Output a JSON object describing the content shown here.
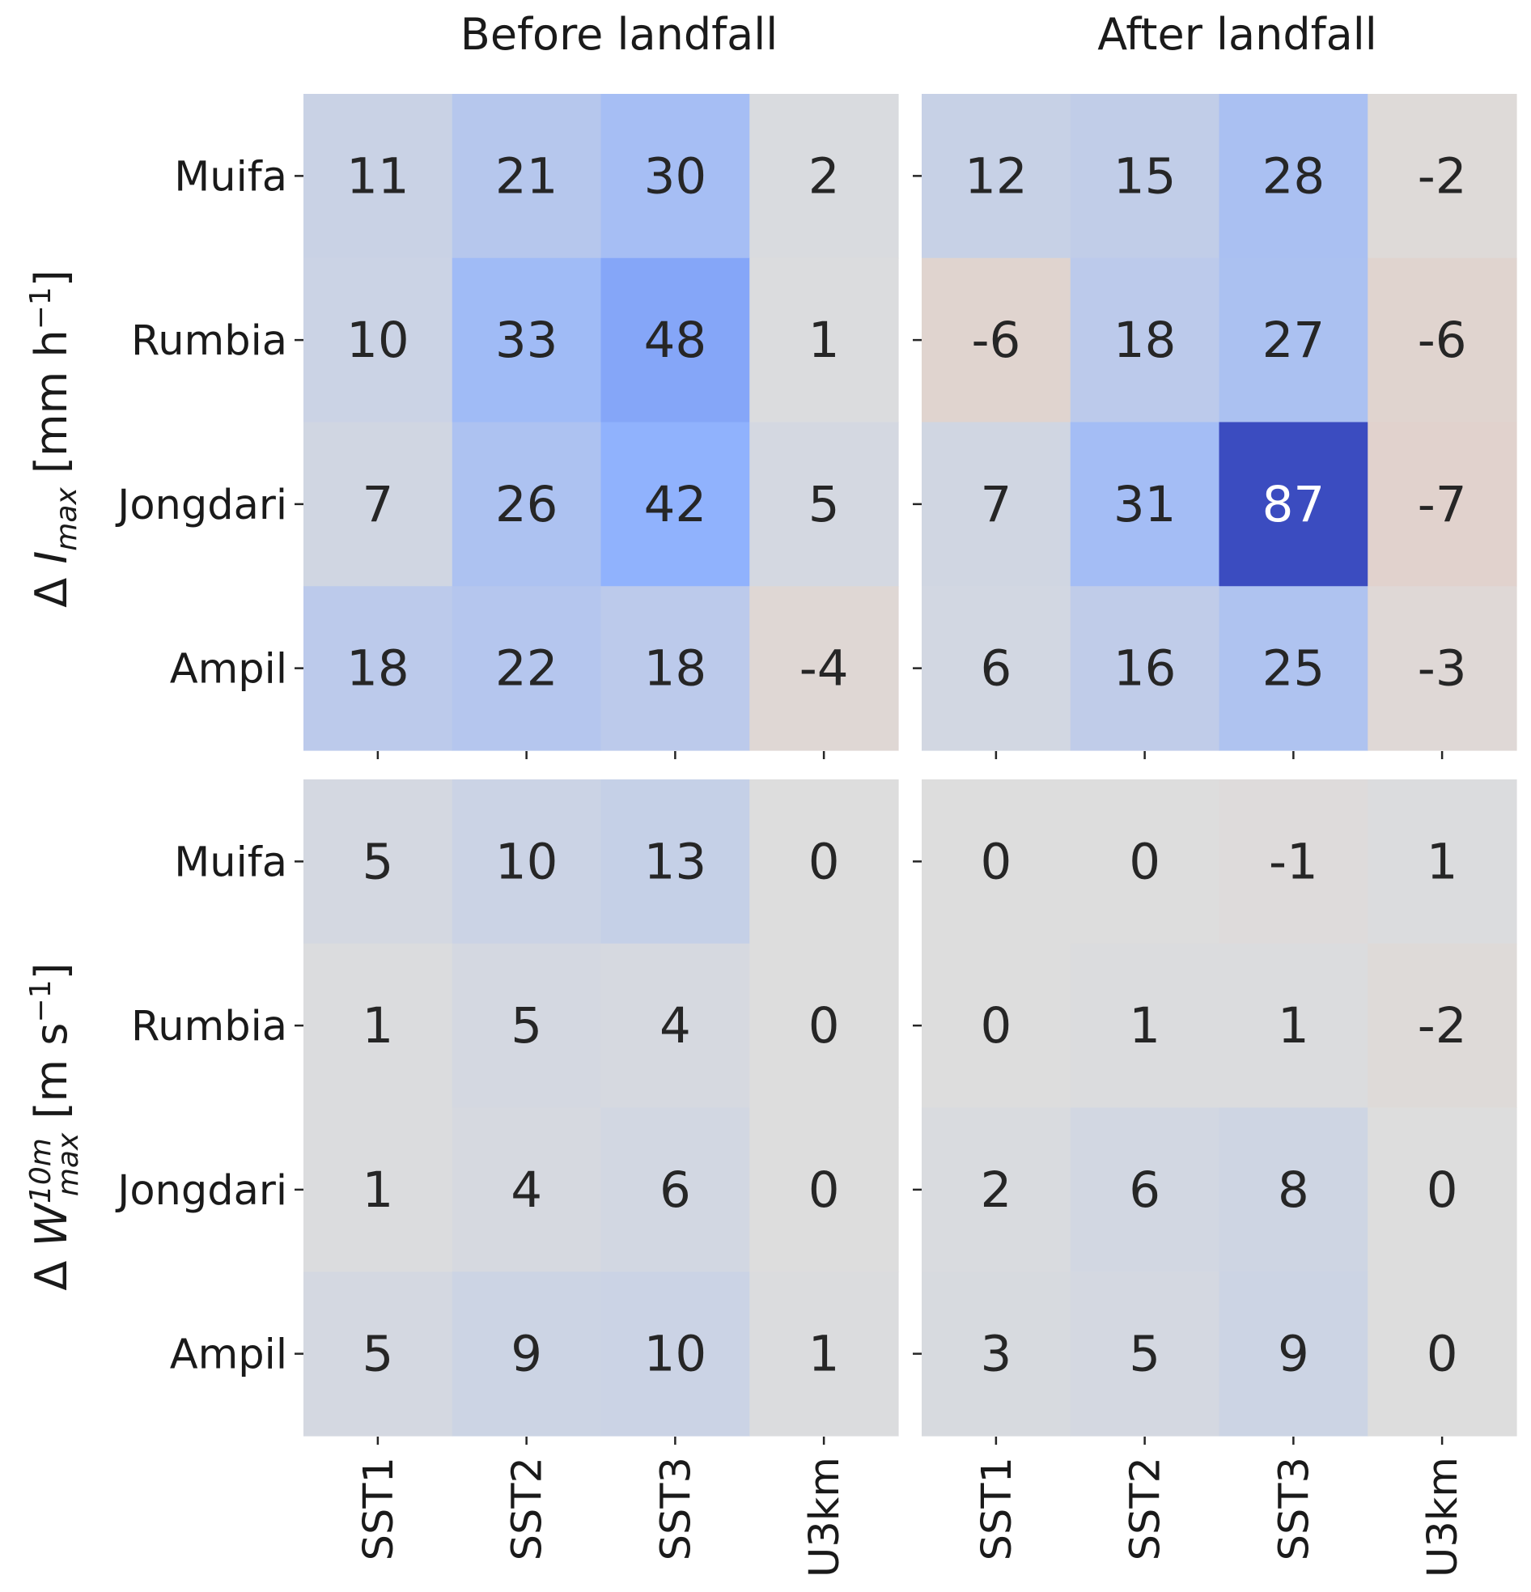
{
  "chart_data": {
    "type": "heatmap",
    "colormap": "coolwarm_r",
    "colormap_center": 0,
    "colormap_max_abs": 87,
    "columns": [
      "SST1",
      "SST2",
      "SST3",
      "U3km"
    ],
    "rows": [
      "Muifa",
      "Rumbia",
      "Jongdari",
      "Ampil"
    ],
    "panel_titles": [
      "Before landfall",
      "After landfall"
    ],
    "row_axis_labels": [
      {
        "prefix": "Δ ",
        "symbol": "I",
        "sub": "max",
        "sup": "",
        "unit_open": " [mm h",
        "unit_sup": "−1",
        "unit_close": "]"
      },
      {
        "prefix": "Δ ",
        "symbol": "W",
        "sub": "max",
        "sup": "10m",
        "unit_open": " [m s",
        "unit_sup": "−1",
        "unit_close": "]"
      }
    ],
    "panels": [
      {
        "title": "Before landfall",
        "variable": "I_max",
        "values": [
          [
            11,
            21,
            30,
            2
          ],
          [
            10,
            33,
            48,
            1
          ],
          [
            7,
            26,
            42,
            5
          ],
          [
            18,
            22,
            18,
            -4
          ]
        ]
      },
      {
        "title": "After landfall",
        "variable": "I_max",
        "values": [
          [
            12,
            15,
            28,
            -2
          ],
          [
            -6,
            18,
            27,
            -6
          ],
          [
            7,
            31,
            87,
            -7
          ],
          [
            6,
            16,
            25,
            -3
          ]
        ]
      },
      {
        "title": "Before landfall",
        "variable": "W_max^10m",
        "values": [
          [
            5,
            10,
            13,
            0
          ],
          [
            1,
            5,
            4,
            0
          ],
          [
            1,
            4,
            6,
            0
          ],
          [
            5,
            9,
            10,
            1
          ]
        ]
      },
      {
        "title": "After landfall",
        "variable": "W_max^10m",
        "values": [
          [
            0,
            0,
            -1,
            1
          ],
          [
            0,
            1,
            1,
            -2
          ],
          [
            2,
            6,
            8,
            0
          ],
          [
            3,
            5,
            9,
            0
          ]
        ]
      }
    ]
  }
}
